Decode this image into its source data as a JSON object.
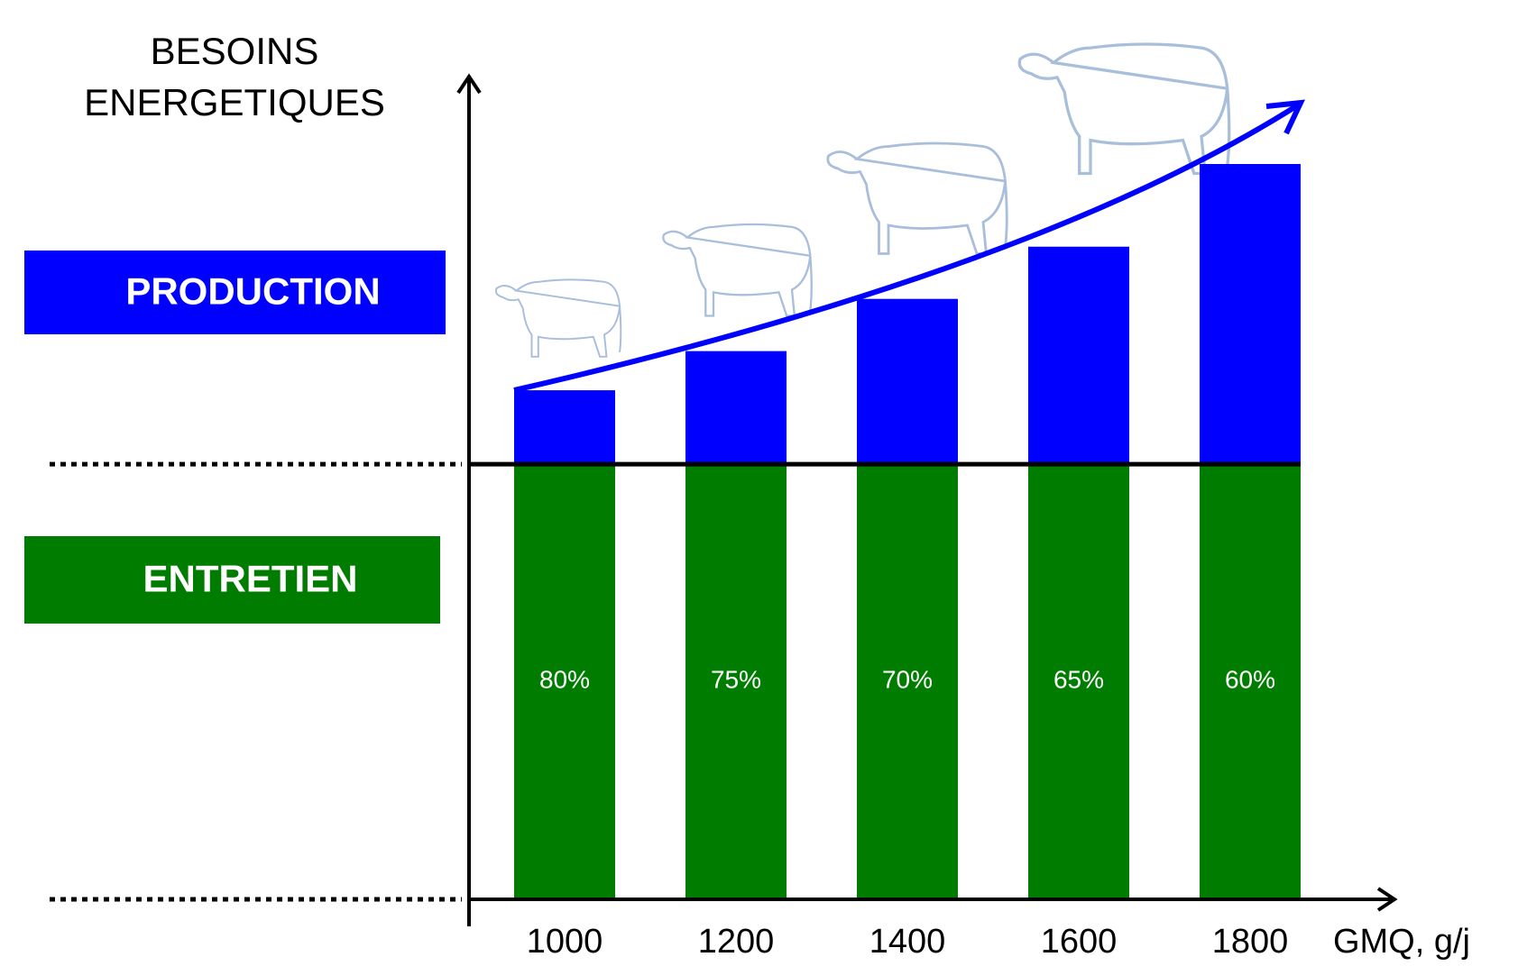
{
  "chart_data": {
    "type": "stacked_bar",
    "y_label": "BESOINS\nENERGETIQUES",
    "x_label": "GMQ, g/j",
    "categories": [
      "1000",
      "1200",
      "1400",
      "1600",
      "1800"
    ],
    "series": [
      {
        "name": "ENTRETIEN",
        "color": "#007d00",
        "values": [
          100,
          100,
          100,
          100,
          100
        ]
      },
      {
        "name": "PRODUCTION",
        "color": "#0000ff",
        "values": [
          17,
          26,
          38,
          50,
          69
        ]
      }
    ],
    "share_labels": [
      "80%",
      "75%",
      "70%",
      "65%",
      "60%"
    ]
  }
}
